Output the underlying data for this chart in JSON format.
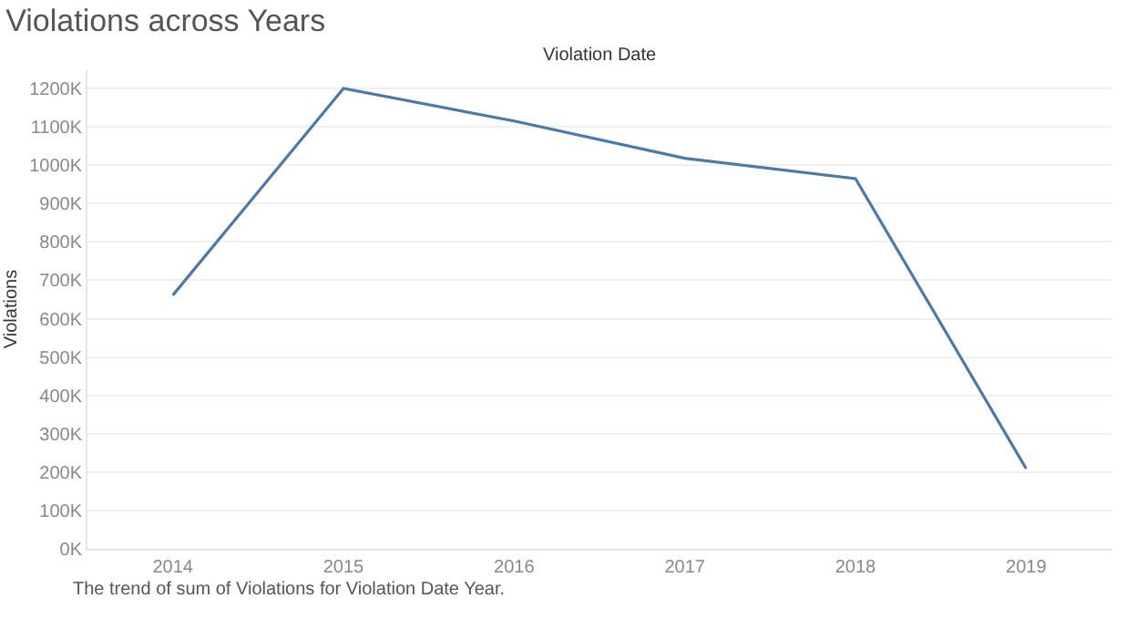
{
  "chart_data": {
    "type": "line",
    "title": "Violations across Years",
    "xlabel": "Violation Date",
    "ylabel": "Violations",
    "categories": [
      "2014",
      "2015",
      "2016",
      "2017",
      "2018",
      "2019"
    ],
    "series": [
      {
        "color": "#4e79a7",
        "values": [
          661000,
          1200000,
          1115000,
          1018000,
          965000,
          209000
        ]
      }
    ],
    "ylim": [
      0,
      1250000
    ],
    "yticks": [
      {
        "value": 0,
        "label": "0K"
      },
      {
        "value": 100000,
        "label": "100K"
      },
      {
        "value": 200000,
        "label": "200K"
      },
      {
        "value": 300000,
        "label": "300K"
      },
      {
        "value": 400000,
        "label": "400K"
      },
      {
        "value": 500000,
        "label": "500K"
      },
      {
        "value": 600000,
        "label": "600K"
      },
      {
        "value": 700000,
        "label": "700K"
      },
      {
        "value": 800000,
        "label": "800K"
      },
      {
        "value": 900000,
        "label": "900K"
      },
      {
        "value": 1000000,
        "label": "1000K"
      },
      {
        "value": 1100000,
        "label": "1100K"
      },
      {
        "value": 1200000,
        "label": "1200K"
      }
    ],
    "grid": "y",
    "marker": "none",
    "line_style": "solid",
    "annotations": [
      "The trend of sum of Violations for Violation Date Year."
    ]
  }
}
